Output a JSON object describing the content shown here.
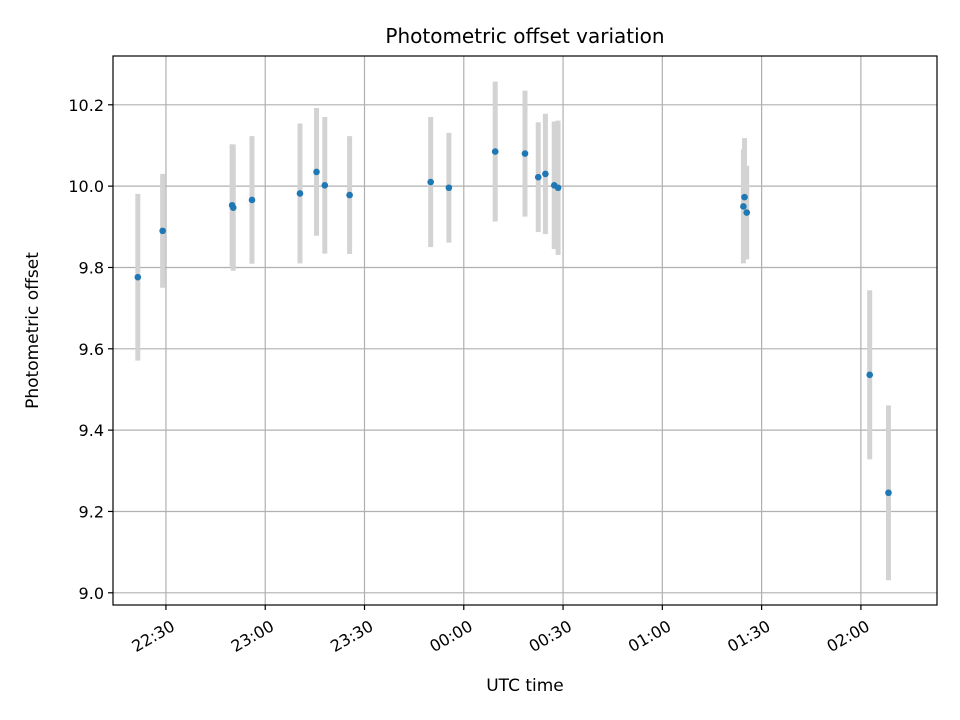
{
  "chart_data": {
    "type": "scatter",
    "title": "Photometric offset variation",
    "xlabel": "UTC time",
    "ylabel": "Photometric offset",
    "x_unit": "UTC clock time (HH:MM), spanning midnight",
    "xlim": [
      "22:14",
      "02:23"
    ],
    "ylim": [
      8.97,
      10.32
    ],
    "grid": true,
    "x_ticks": [
      "22:30",
      "23:00",
      "23:30",
      "00:00",
      "00:30",
      "01:00",
      "01:30",
      "02:00"
    ],
    "y_ticks": [
      "9.0",
      "9.2",
      "9.4",
      "9.6",
      "9.8",
      "10.0",
      "10.2"
    ],
    "colors": {
      "point": "#1f77b4",
      "errorbar": "#d3d3d3",
      "grid": "#b0b0b0",
      "axes": "#000000"
    },
    "series": [
      {
        "points": [
          {
            "t": "22:21:30",
            "y": 9.776,
            "err": 0.205
          },
          {
            "t": "22:29:00",
            "y": 9.89,
            "err": 0.14
          },
          {
            "t": "22:50:00",
            "y": 9.953,
            "err": 0.15
          },
          {
            "t": "22:50:20",
            "y": 9.947,
            "err": 0.155
          },
          {
            "t": "22:56:00",
            "y": 9.966,
            "err": 0.157
          },
          {
            "t": "23:10:30",
            "y": 9.982,
            "err": 0.172
          },
          {
            "t": "23:15:30",
            "y": 10.035,
            "err": 0.157
          },
          {
            "t": "23:18:00",
            "y": 10.002,
            "err": 0.168
          },
          {
            "t": "23:25:30",
            "y": 9.978,
            "err": 0.145
          },
          {
            "t": "23:50:00",
            "y": 10.01,
            "err": 0.16
          },
          {
            "t": "23:55:30",
            "y": 9.996,
            "err": 0.135
          },
          {
            "t": "00:09:30",
            "y": 10.085,
            "err": 0.172
          },
          {
            "t": "00:18:30",
            "y": 10.08,
            "err": 0.155
          },
          {
            "t": "00:22:30",
            "y": 10.022,
            "err": 0.135
          },
          {
            "t": "00:24:40",
            "y": 10.03,
            "err": 0.148
          },
          {
            "t": "00:27:20",
            "y": 10.002,
            "err": 0.157
          },
          {
            "t": "00:28:30",
            "y": 9.996,
            "err": 0.165
          },
          {
            "t": "01:24:30",
            "y": 9.95,
            "err": 0.14
          },
          {
            "t": "01:24:50",
            "y": 9.973,
            "err": 0.145
          },
          {
            "t": "01:25:30",
            "y": 9.935,
            "err": 0.115
          },
          {
            "t": "02:02:40",
            "y": 9.536,
            "err": 0.208
          },
          {
            "t": "02:08:20",
            "y": 9.246,
            "err": 0.215
          }
        ]
      }
    ]
  }
}
